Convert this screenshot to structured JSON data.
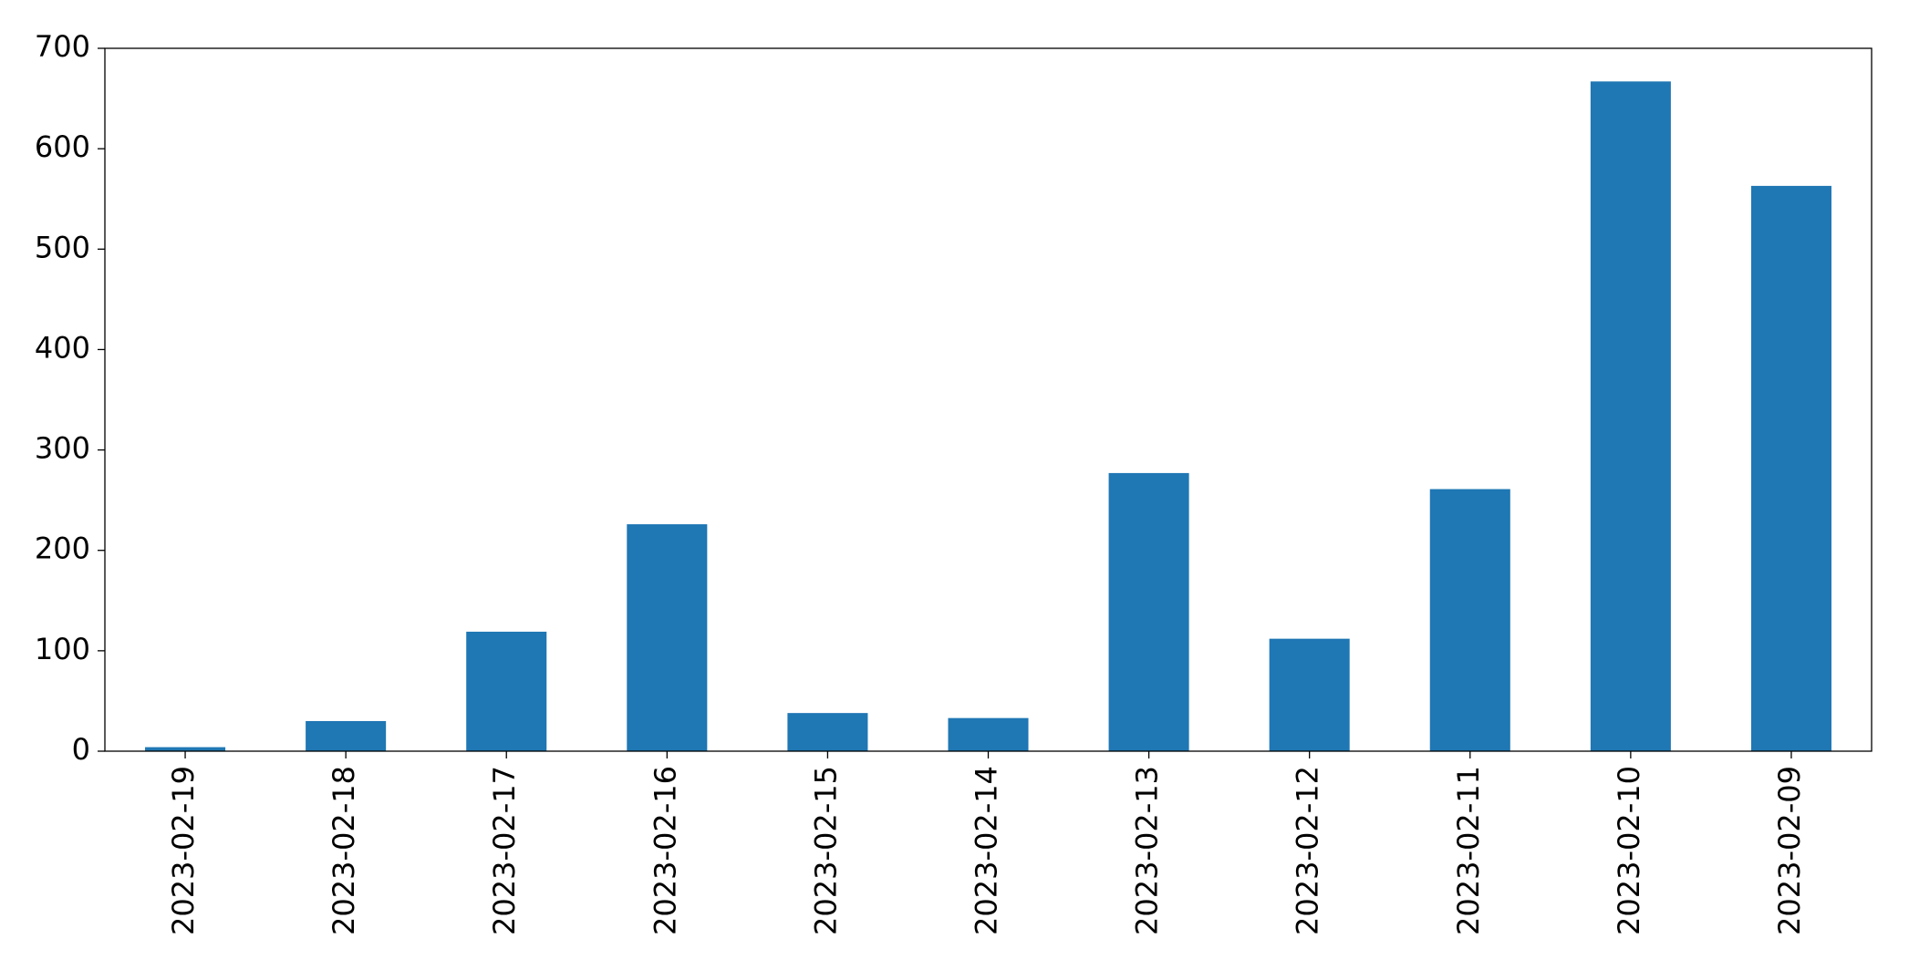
{
  "chart_data": {
    "type": "bar",
    "categories": [
      "2023-02-19",
      "2023-02-18",
      "2023-02-17",
      "2023-02-16",
      "2023-02-15",
      "2023-02-14",
      "2023-02-13",
      "2023-02-12",
      "2023-02-11",
      "2023-02-10",
      "2023-02-09"
    ],
    "values": [
      4,
      30,
      119,
      226,
      38,
      33,
      277,
      112,
      261,
      667,
      563
    ],
    "color": "#1f77b4",
    "ylim": [
      0,
      700
    ],
    "yticks": [
      0,
      100,
      200,
      300,
      400,
      500,
      600,
      700
    ],
    "grid": false
  }
}
